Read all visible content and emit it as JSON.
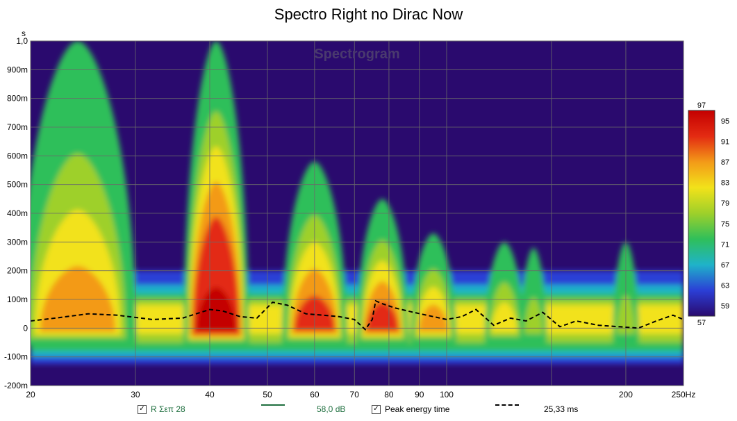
{
  "chart_data": {
    "type": "heatmap",
    "title": "Spectro Right no Dirac Now",
    "watermark": "Spectrogram",
    "x_scale": "log",
    "xlim": [
      20,
      250
    ],
    "x_ticks": [
      {
        "v": 20,
        "label": "20"
      },
      {
        "v": 30,
        "label": "30"
      },
      {
        "v": 40,
        "label": "40"
      },
      {
        "v": 50,
        "label": "50"
      },
      {
        "v": 60,
        "label": "60"
      },
      {
        "v": 70,
        "label": "70"
      },
      {
        "v": 80,
        "label": "80"
      },
      {
        "v": 90,
        "label": "90"
      },
      {
        "v": 100,
        "label": "100"
      },
      {
        "v": 200,
        "label": "200"
      },
      {
        "v": 250,
        "label": "250Hz"
      }
    ],
    "x_minor": [
      150
    ],
    "ylabel": "s",
    "ylim": [
      -0.2,
      1.0
    ],
    "y_ticks": [
      {
        "v": 1.0,
        "label": "1,0"
      },
      {
        "v": 0.9,
        "label": "900m"
      },
      {
        "v": 0.8,
        "label": "800m"
      },
      {
        "v": 0.7,
        "label": "700m"
      },
      {
        "v": 0.6,
        "label": "600m"
      },
      {
        "v": 0.5,
        "label": "500m"
      },
      {
        "v": 0.4,
        "label": "400m"
      },
      {
        "v": 0.3,
        "label": "300m"
      },
      {
        "v": 0.2,
        "label": "200m"
      },
      {
        "v": 0.1,
        "label": "100m"
      },
      {
        "v": 0.0,
        "label": "0"
      },
      {
        "v": -0.1,
        "label": "-100m"
      },
      {
        "v": -0.2,
        "label": "-200m"
      }
    ],
    "colorbar": {
      "min": 57,
      "max": 97,
      "unit": "dB",
      "labels": [
        "97",
        "95",
        "91",
        "87",
        "83",
        "79",
        "75",
        "71",
        "67",
        "63",
        "59",
        "57"
      ],
      "label_values": [
        97,
        95,
        91,
        87,
        83,
        79,
        75,
        71,
        67,
        63,
        59,
        57
      ]
    },
    "colors": {
      "background": "#2a0a6e",
      "ridge_0": "#2a0a6e",
      "ridge_1": "#2b3fd6",
      "ridge_2": "#1fb3c9",
      "ridge_3": "#2fbf5a",
      "ridge_4": "#9ed02a",
      "ridge_5": "#f2e21a",
      "ridge_6": "#f39a18",
      "ridge_7": "#e32b12",
      "ridge_8": "#c40000"
    },
    "resonances": [
      {
        "freq": 24,
        "top_s": 1.0,
        "peak_db": 86,
        "width": 0.09
      },
      {
        "freq": 41,
        "top_s": 1.0,
        "peak_db": 96,
        "width": 0.05
      },
      {
        "freq": 60,
        "top_s": 0.58,
        "peak_db": 88,
        "width": 0.05
      },
      {
        "freq": 78,
        "top_s": 0.45,
        "peak_db": 89,
        "width": 0.04
      },
      {
        "freq": 95,
        "top_s": 0.33,
        "peak_db": 86,
        "width": 0.035
      },
      {
        "freq": 125,
        "top_s": 0.3,
        "peak_db": 80,
        "width": 0.03
      },
      {
        "freq": 140,
        "top_s": 0.28,
        "peak_db": 79,
        "width": 0.02
      },
      {
        "freq": 200,
        "top_s": 0.3,
        "peak_db": 79,
        "width": 0.02
      }
    ],
    "peak_energy_time": {
      "x": [
        20,
        22,
        25,
        28,
        32,
        36,
        40,
        42,
        45,
        48,
        51,
        54,
        58,
        62,
        66,
        70,
        73,
        75,
        76,
        78,
        82,
        88,
        95,
        100,
        106,
        112,
        120,
        128,
        136,
        145,
        155,
        165,
        180,
        195,
        210,
        225,
        240,
        250
      ],
      "y": [
        0.025,
        0.035,
        0.05,
        0.045,
        0.03,
        0.035,
        0.065,
        0.06,
        0.04,
        0.035,
        0.09,
        0.08,
        0.05,
        0.045,
        0.04,
        0.03,
        -0.005,
        0.03,
        0.095,
        0.085,
        0.07,
        0.055,
        0.04,
        0.03,
        0.04,
        0.065,
        0.01,
        0.035,
        0.025,
        0.055,
        0.005,
        0.025,
        0.01,
        0.005,
        0.0,
        0.025,
        0.045,
        0.03
      ]
    },
    "legend": [
      {
        "checked": true,
        "name": "R Σεπ 28",
        "value": "58,0 dB",
        "line_color": "#1f6f3f",
        "style": "solid"
      },
      {
        "checked": true,
        "name": "Peak energy time",
        "value": "25,33 ms",
        "line_color": "#000000",
        "style": "dashed"
      }
    ]
  },
  "legend_check": "✓"
}
